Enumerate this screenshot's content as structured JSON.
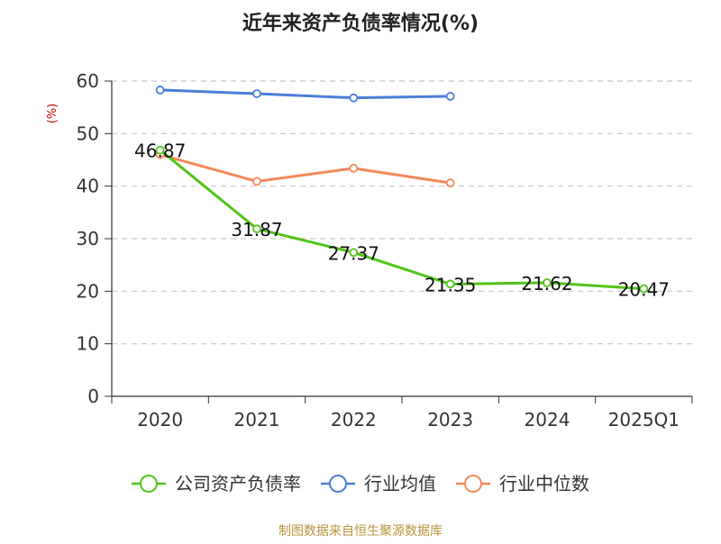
{
  "chart_data": {
    "type": "line",
    "title": "近年来资产负债率情况(%)",
    "ylabel": "(%)",
    "categories": [
      "2020",
      "2021",
      "2022",
      "2023",
      "2024",
      "2025Q1"
    ],
    "yticks": [
      "0",
      "10",
      "20",
      "30",
      "40",
      "50",
      "60"
    ],
    "ylim": [
      0,
      60
    ],
    "grid": true,
    "legend_position": "bottom",
    "series": [
      {
        "name": "公司资产负债率",
        "color": "#52c41a",
        "values": [
          46.87,
          31.87,
          27.37,
          21.35,
          21.62,
          20.47
        ],
        "labels": [
          "46.87",
          "31.87",
          "27.37",
          "21.35",
          "21.62",
          "20.47"
        ]
      },
      {
        "name": "行业均值",
        "color": "#4a7fd8",
        "values": [
          58.3,
          57.6,
          56.8,
          57.1,
          null,
          null
        ]
      },
      {
        "name": "行业中位数",
        "color": "#f5895a",
        "values": [
          46.0,
          40.9,
          43.4,
          40.6,
          null,
          null
        ]
      }
    ]
  },
  "footer": {
    "source": "制图数据来自恒生聚源数据库"
  }
}
